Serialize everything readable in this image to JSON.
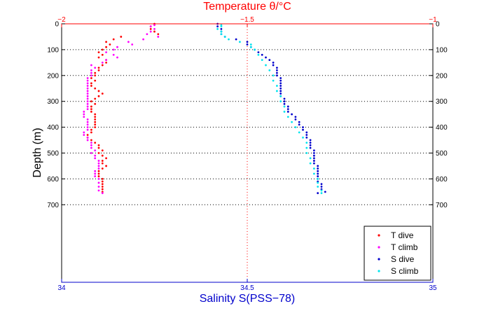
{
  "chart_data": {
    "type": "scatter",
    "top_axis": {
      "label": "Temperature θ/°C",
      "lim": [
        -2,
        -1
      ],
      "ticks": [
        -2,
        -1.5,
        -1
      ],
      "tick_labels": [
        "−2",
        "−1.5",
        "−1"
      ],
      "color": "#ff0000"
    },
    "bottom_axis": {
      "label": "Salinity S(PSS−78)",
      "lim": [
        34,
        35
      ],
      "ticks": [
        34,
        34.5,
        35
      ],
      "tick_labels": [
        "34",
        "34.5",
        "35"
      ],
      "color": "#0000cc"
    },
    "y_axis": {
      "label": "Depth (m)",
      "lim": [
        0,
        1000
      ],
      "reversed": true,
      "ticks": [
        0,
        100,
        200,
        300,
        400,
        500,
        600,
        700
      ],
      "tick_labels": [
        "0",
        "100",
        "200",
        "300",
        "400",
        "500",
        "600",
        "700"
      ]
    },
    "grid": "dotted horizontal gridlines at depth ticks; dotted vertical line at x=34.5 / -1.5",
    "legend_position": "bottom-right",
    "series": [
      {
        "name": "T dive",
        "axis": "top",
        "color": "#ff0000",
        "points": [
          [
            -1.75,
            0
          ],
          [
            -1.76,
            10
          ],
          [
            -1.76,
            20
          ],
          [
            -1.75,
            30
          ],
          [
            -1.74,
            40
          ],
          [
            -1.84,
            50
          ],
          [
            -1.86,
            60
          ],
          [
            -1.88,
            70
          ],
          [
            -1.87,
            80
          ],
          [
            -1.88,
            90
          ],
          [
            -1.89,
            100
          ],
          [
            -1.9,
            110
          ],
          [
            -1.89,
            120
          ],
          [
            -1.9,
            130
          ],
          [
            -1.88,
            140
          ],
          [
            -1.88,
            150
          ],
          [
            -1.89,
            160
          ],
          [
            -1.9,
            170
          ],
          [
            -1.9,
            180
          ],
          [
            -1.91,
            190
          ],
          [
            -1.91,
            200
          ],
          [
            -1.92,
            210
          ],
          [
            -1.91,
            220
          ],
          [
            -1.92,
            230
          ],
          [
            -1.92,
            240
          ],
          [
            -1.91,
            250
          ],
          [
            -1.9,
            260
          ],
          [
            -1.89,
            270
          ],
          [
            -1.9,
            280
          ],
          [
            -1.91,
            290
          ],
          [
            -1.92,
            300
          ],
          [
            -1.91,
            310
          ],
          [
            -1.92,
            320
          ],
          [
            -1.92,
            330
          ],
          [
            -1.92,
            340
          ],
          [
            -1.91,
            350
          ],
          [
            -1.91,
            360
          ],
          [
            -1.91,
            370
          ],
          [
            -1.91,
            380
          ],
          [
            -1.91,
            390
          ],
          [
            -1.91,
            400
          ],
          [
            -1.92,
            410
          ],
          [
            -1.92,
            420
          ],
          [
            -1.93,
            430
          ],
          [
            -1.93,
            440
          ],
          [
            -1.92,
            450
          ],
          [
            -1.91,
            460
          ],
          [
            -1.9,
            470
          ],
          [
            -1.9,
            480
          ],
          [
            -1.89,
            490
          ],
          [
            -1.9,
            500
          ],
          [
            -1.89,
            510
          ],
          [
            -1.88,
            520
          ],
          [
            -1.89,
            530
          ],
          [
            -1.89,
            540
          ],
          [
            -1.88,
            550
          ],
          [
            -1.89,
            560
          ],
          [
            -1.9,
            570
          ],
          [
            -1.9,
            580
          ],
          [
            -1.9,
            590
          ],
          [
            -1.89,
            600
          ],
          [
            -1.89,
            610
          ],
          [
            -1.89,
            620
          ],
          [
            -1.89,
            630
          ],
          [
            -1.89,
            640
          ],
          [
            -1.89,
            650
          ]
        ]
      },
      {
        "name": "T climb",
        "axis": "top",
        "color": "#ff00ff",
        "points": [
          [
            -1.89,
            655
          ],
          [
            -1.9,
            645
          ],
          [
            -1.9,
            630
          ],
          [
            -1.9,
            615
          ],
          [
            -1.9,
            600
          ],
          [
            -1.91,
            590
          ],
          [
            -1.91,
            580
          ],
          [
            -1.91,
            570
          ],
          [
            -1.9,
            560
          ],
          [
            -1.9,
            550
          ],
          [
            -1.9,
            540
          ],
          [
            -1.9,
            530
          ],
          [
            -1.91,
            520
          ],
          [
            -1.91,
            510
          ],
          [
            -1.92,
            500
          ],
          [
            -1.91,
            490
          ],
          [
            -1.92,
            480
          ],
          [
            -1.92,
            470
          ],
          [
            -1.92,
            460
          ],
          [
            -1.93,
            450
          ],
          [
            -1.93,
            440
          ],
          [
            -1.94,
            430
          ],
          [
            -1.94,
            420
          ],
          [
            -1.93,
            410
          ],
          [
            -1.93,
            400
          ],
          [
            -1.93,
            390
          ],
          [
            -1.93,
            380
          ],
          [
            -1.93,
            370
          ],
          [
            -1.94,
            360
          ],
          [
            -1.94,
            350
          ],
          [
            -1.94,
            340
          ],
          [
            -1.93,
            330
          ],
          [
            -1.93,
            320
          ],
          [
            -1.93,
            310
          ],
          [
            -1.93,
            300
          ],
          [
            -1.93,
            290
          ],
          [
            -1.93,
            280
          ],
          [
            -1.93,
            270
          ],
          [
            -1.93,
            260
          ],
          [
            -1.93,
            250
          ],
          [
            -1.93,
            240
          ],
          [
            -1.93,
            230
          ],
          [
            -1.93,
            220
          ],
          [
            -1.93,
            210
          ],
          [
            -1.92,
            200
          ],
          [
            -1.92,
            190
          ],
          [
            -1.92,
            180
          ],
          [
            -1.91,
            170
          ],
          [
            -1.92,
            160
          ],
          [
            -1.89,
            150
          ],
          [
            -1.88,
            140
          ],
          [
            -1.85,
            130
          ],
          [
            -1.86,
            120
          ],
          [
            -1.88,
            110
          ],
          [
            -1.86,
            100
          ],
          [
            -1.85,
            90
          ],
          [
            -1.81,
            80
          ],
          [
            -1.82,
            70
          ],
          [
            -1.78,
            60
          ],
          [
            -1.74,
            50
          ],
          [
            -1.77,
            40
          ],
          [
            -1.76,
            30
          ],
          [
            -1.75,
            20
          ],
          [
            -1.76,
            10
          ],
          [
            -1.75,
            5
          ]
        ]
      },
      {
        "name": "S dive",
        "axis": "bottom",
        "color": "#0000cc",
        "points": [
          [
            34.42,
            0
          ],
          [
            34.42,
            10
          ],
          [
            34.43,
            20
          ],
          [
            34.43,
            30
          ],
          [
            34.43,
            40
          ],
          [
            34.44,
            50
          ],
          [
            34.47,
            60
          ],
          [
            34.5,
            70
          ],
          [
            34.5,
            80
          ],
          [
            34.51,
            90
          ],
          [
            34.52,
            100
          ],
          [
            34.53,
            110
          ],
          [
            34.54,
            120
          ],
          [
            34.55,
            130
          ],
          [
            34.56,
            140
          ],
          [
            34.57,
            150
          ],
          [
            34.57,
            160
          ],
          [
            34.58,
            170
          ],
          [
            34.58,
            180
          ],
          [
            34.58,
            190
          ],
          [
            34.58,
            200
          ],
          [
            34.59,
            210
          ],
          [
            34.59,
            220
          ],
          [
            34.59,
            230
          ],
          [
            34.59,
            240
          ],
          [
            34.59,
            250
          ],
          [
            34.59,
            260
          ],
          [
            34.59,
            270
          ],
          [
            34.59,
            280
          ],
          [
            34.6,
            290
          ],
          [
            34.6,
            300
          ],
          [
            34.6,
            310
          ],
          [
            34.61,
            320
          ],
          [
            34.61,
            330
          ],
          [
            34.61,
            340
          ],
          [
            34.62,
            350
          ],
          [
            34.63,
            360
          ],
          [
            34.63,
            370
          ],
          [
            34.64,
            380
          ],
          [
            34.64,
            390
          ],
          [
            34.65,
            400
          ],
          [
            34.65,
            410
          ],
          [
            34.66,
            420
          ],
          [
            34.66,
            430
          ],
          [
            34.66,
            440
          ],
          [
            34.67,
            450
          ],
          [
            34.67,
            460
          ],
          [
            34.67,
            470
          ],
          [
            34.67,
            480
          ],
          [
            34.68,
            490
          ],
          [
            34.68,
            500
          ],
          [
            34.68,
            510
          ],
          [
            34.68,
            520
          ],
          [
            34.68,
            530
          ],
          [
            34.68,
            540
          ],
          [
            34.69,
            550
          ],
          [
            34.69,
            560
          ],
          [
            34.69,
            570
          ],
          [
            34.69,
            580
          ],
          [
            34.69,
            590
          ],
          [
            34.69,
            600
          ],
          [
            34.69,
            610
          ],
          [
            34.7,
            620
          ],
          [
            34.7,
            630
          ],
          [
            34.7,
            640
          ],
          [
            34.71,
            650
          ],
          [
            34.69,
            655
          ]
        ]
      },
      {
        "name": "S climb",
        "axis": "bottom",
        "color": "#00e5ee",
        "points": [
          [
            34.7,
            655
          ],
          [
            34.7,
            645
          ],
          [
            34.69,
            630
          ],
          [
            34.69,
            615
          ],
          [
            34.69,
            600
          ],
          [
            34.68,
            580
          ],
          [
            34.68,
            560
          ],
          [
            34.67,
            540
          ],
          [
            34.67,
            520
          ],
          [
            34.66,
            500
          ],
          [
            34.66,
            480
          ],
          [
            34.66,
            460
          ],
          [
            34.65,
            440
          ],
          [
            34.64,
            420
          ],
          [
            34.63,
            400
          ],
          [
            34.62,
            380
          ],
          [
            34.61,
            360
          ],
          [
            34.6,
            340
          ],
          [
            34.6,
            320
          ],
          [
            34.59,
            300
          ],
          [
            34.59,
            280
          ],
          [
            34.58,
            260
          ],
          [
            34.58,
            240
          ],
          [
            34.57,
            220
          ],
          [
            34.57,
            200
          ],
          [
            34.56,
            180
          ],
          [
            34.55,
            160
          ],
          [
            34.54,
            140
          ],
          [
            34.53,
            120
          ],
          [
            34.52,
            100
          ],
          [
            34.51,
            90
          ],
          [
            34.51,
            80
          ],
          [
            34.48,
            70
          ],
          [
            34.45,
            60
          ],
          [
            34.44,
            50
          ],
          [
            34.43,
            40
          ],
          [
            34.43,
            30
          ],
          [
            34.42,
            20
          ],
          [
            34.43,
            10
          ],
          [
            34.43,
            5
          ]
        ]
      }
    ]
  }
}
